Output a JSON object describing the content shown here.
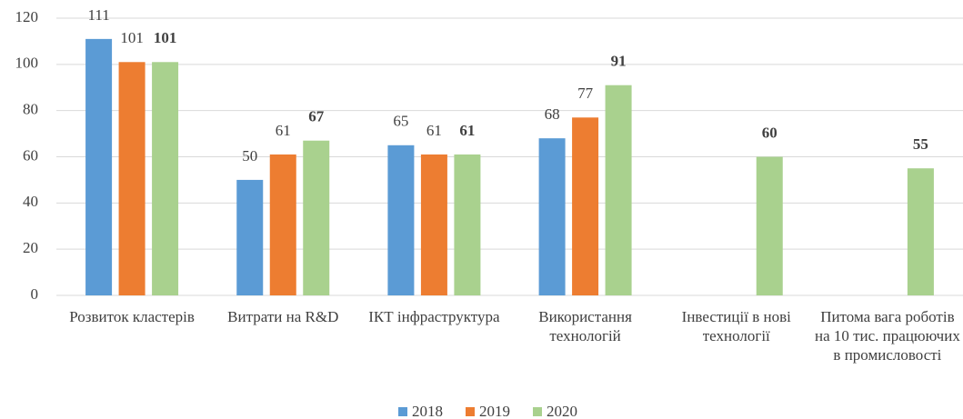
{
  "chart_data": {
    "type": "bar",
    "categories": [
      "Розвиток кластерів",
      "Витрати на R&D",
      "ІКТ інфраструктура",
      "Використання технологій",
      "Інвестиції в нові технології",
      "Питома вага роботів на 10 тис. працюючих в промисловості"
    ],
    "series": [
      {
        "name": "2018",
        "color": "#5b9bd5",
        "values": [
          111,
          50,
          65,
          68,
          null,
          null
        ]
      },
      {
        "name": "2019",
        "color": "#ed7d31",
        "values": [
          101,
          61,
          61,
          77,
          null,
          null
        ]
      },
      {
        "name": "2020",
        "color": "#a9d18e",
        "values": [
          101,
          67,
          61,
          91,
          60,
          55
        ]
      }
    ],
    "ylim": [
      0,
      120
    ],
    "yticks": [
      0,
      20,
      40,
      60,
      80,
      100,
      120
    ],
    "grid": true,
    "legend": "bottom"
  }
}
